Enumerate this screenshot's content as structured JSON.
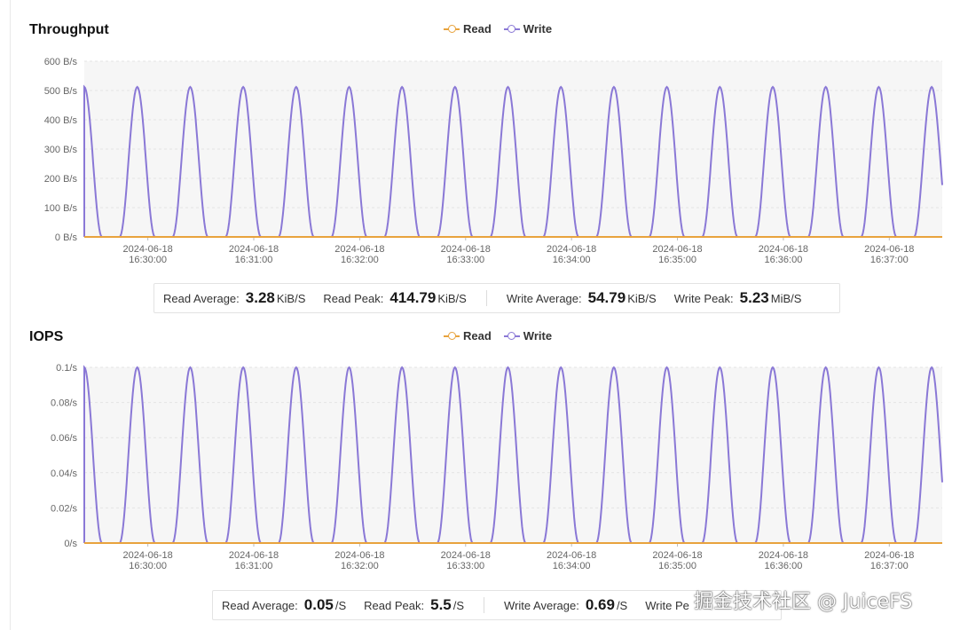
{
  "colors": {
    "read": "#e8a33d",
    "write": "#8a78d6",
    "plot_bg": "#f6f6f6",
    "grid": "#e4e4e4"
  },
  "throughput": {
    "title": "Throughput",
    "legend": {
      "read": "Read",
      "write": "Write"
    },
    "stats": {
      "read_avg_label": "Read Average:",
      "read_avg_value": "3.28",
      "read_avg_unit": "KiB/S",
      "read_peak_label": "Read Peak:",
      "read_peak_value": "414.79",
      "read_peak_unit": "KiB/S",
      "write_avg_label": "Write Average:",
      "write_avg_value": "54.79",
      "write_avg_unit": "KiB/S",
      "write_peak_label": "Write Peak:",
      "write_peak_value": "5.23",
      "write_peak_unit": "MiB/S"
    }
  },
  "iops": {
    "title": "IOPS",
    "legend": {
      "read": "Read",
      "write": "Write"
    },
    "stats": {
      "read_avg_label": "Read Average:",
      "read_avg_value": "0.05",
      "read_avg_unit": "/S",
      "read_peak_label": "Read Peak:",
      "read_peak_value": "5.5",
      "read_peak_unit": "/S",
      "write_avg_label": "Write Average:",
      "write_avg_value": "0.69",
      "write_avg_unit": "/S",
      "write_peak_label": "Write Pe"
    }
  },
  "watermark": "掘金技术社区 @ JuiceFS",
  "chart_data": [
    {
      "type": "line",
      "title": "Throughput",
      "x_start": "2024-06-18 16:29:24",
      "x_end": "2024-06-18 16:37:30",
      "x_ticks": [
        "2024-06-18 16:30:00",
        "2024-06-18 16:31:00",
        "2024-06-18 16:32:00",
        "2024-06-18 16:33:00",
        "2024-06-18 16:34:00",
        "2024-06-18 16:35:00",
        "2024-06-18 16:36:00",
        "2024-06-18 16:37:00"
      ],
      "y_ticks": [
        "0 B/s",
        "100 B/s",
        "200 B/s",
        "300 B/s",
        "400 B/s",
        "500 B/s",
        "600 B/s"
      ],
      "ylim": [
        0,
        600
      ],
      "legend_position": "top-center",
      "series": [
        {
          "name": "Read",
          "x": [
            "16:29:24",
            "16:37:30"
          ],
          "values": [
            0,
            0
          ]
        },
        {
          "name": "Write",
          "x": [
            "16:29:24",
            "16:29:54",
            "16:30:24",
            "16:30:54",
            "16:31:24",
            "16:31:54",
            "16:32:24",
            "16:32:54",
            "16:33:24",
            "16:33:54",
            "16:34:24",
            "16:34:54",
            "16:35:24",
            "16:35:54",
            "16:36:24",
            "16:36:54",
            "16:37:24",
            "16:37:30"
          ],
          "values": [
            512,
            512,
            512,
            512,
            512,
            512,
            512,
            512,
            512,
            512,
            512,
            512,
            512,
            512,
            512,
            512,
            512,
            0
          ]
        }
      ]
    },
    {
      "type": "line",
      "title": "IOPS",
      "x_start": "2024-06-18 16:29:24",
      "x_end": "2024-06-18 16:37:30",
      "x_ticks": [
        "2024-06-18 16:30:00",
        "2024-06-18 16:31:00",
        "2024-06-18 16:32:00",
        "2024-06-18 16:33:00",
        "2024-06-18 16:34:00",
        "2024-06-18 16:35:00",
        "2024-06-18 16:36:00",
        "2024-06-18 16:37:00"
      ],
      "y_ticks": [
        "0/s",
        "0.02/s",
        "0.04/s",
        "0.06/s",
        "0.08/s",
        "0.1/s"
      ],
      "ylim": [
        0,
        0.1
      ],
      "legend_position": "top-center",
      "series": [
        {
          "name": "Read",
          "x": [
            "16:29:24",
            "16:37:30"
          ],
          "values": [
            0,
            0
          ]
        },
        {
          "name": "Write",
          "x": [
            "16:29:24",
            "16:29:54",
            "16:30:24",
            "16:30:54",
            "16:31:24",
            "16:31:54",
            "16:32:24",
            "16:32:54",
            "16:33:24",
            "16:33:54",
            "16:34:24",
            "16:34:54",
            "16:35:24",
            "16:35:54",
            "16:36:24",
            "16:36:54",
            "16:37:24",
            "16:37:30"
          ],
          "values": [
            0.1,
            0.1,
            0.1,
            0.1,
            0.1,
            0.1,
            0.1,
            0.1,
            0.1,
            0.1,
            0.1,
            0.1,
            0.1,
            0.1,
            0.1,
            0.1,
            0.1,
            0
          ]
        }
      ]
    }
  ]
}
